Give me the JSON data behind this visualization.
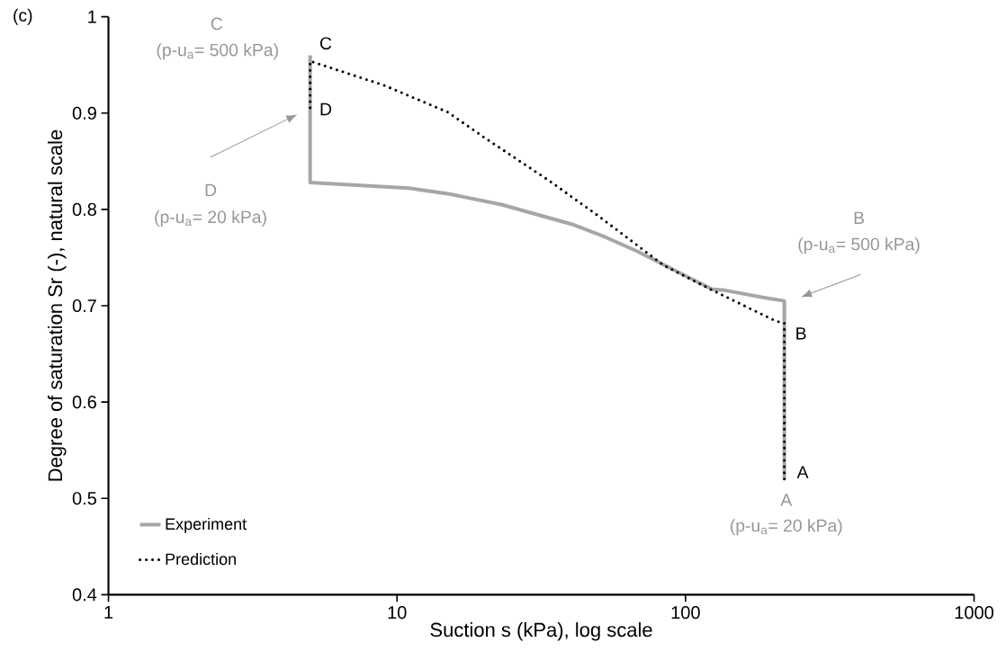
{
  "chart_data": {
    "type": "line",
    "xlabel": "Suction s (kPa), log scale",
    "ylabel": "Degree of saturation Sr (-), natural scale",
    "log": "x",
    "xlim": [
      1,
      1000
    ],
    "xticks": [
      1,
      10,
      100,
      1000
    ],
    "ylim": [
      0.4,
      1
    ],
    "yticks": [
      0.4,
      0.5,
      0.6,
      0.7,
      0.8,
      0.9,
      1
    ],
    "legend": "bottom left",
    "series": [
      {
        "name": "Experiment",
        "color": "#a6a6a6",
        "line_style": "solid",
        "x": [
          220,
          220,
          191,
          137,
          124,
          95.5,
          68.6,
          53,
          41,
          23,
          15.2,
          11,
          5,
          5
        ],
        "values": [
          0.52,
          0.705,
          0.708,
          0.716,
          0.717,
          0.734,
          0.756,
          0.771,
          0.784,
          0.805,
          0.816,
          0.822,
          0.828,
          0.96
        ]
      },
      {
        "name": "Prediction",
        "color": "#000000",
        "line_style": "dotted",
        "x": [
          220,
          220,
          206,
          124,
          84,
          50,
          34,
          20,
          15,
          9,
          5,
          5
        ],
        "values": [
          0.52,
          0.682,
          0.684,
          0.716,
          0.742,
          0.793,
          0.829,
          0.875,
          0.901,
          0.929,
          0.954,
          0.905
        ]
      }
    ],
    "annotations": [
      "(c)",
      "C",
      "D",
      "B",
      "A",
      "C",
      "(p-u$_{a}$= 500 kPa)",
      "D",
      "(p-u$_{a}$= 20 kPa)",
      "B",
      "(p-u$_{a}$= 500 kPa)",
      "A",
      "(p-u$_{a}$= 20 kPa)"
    ]
  }
}
